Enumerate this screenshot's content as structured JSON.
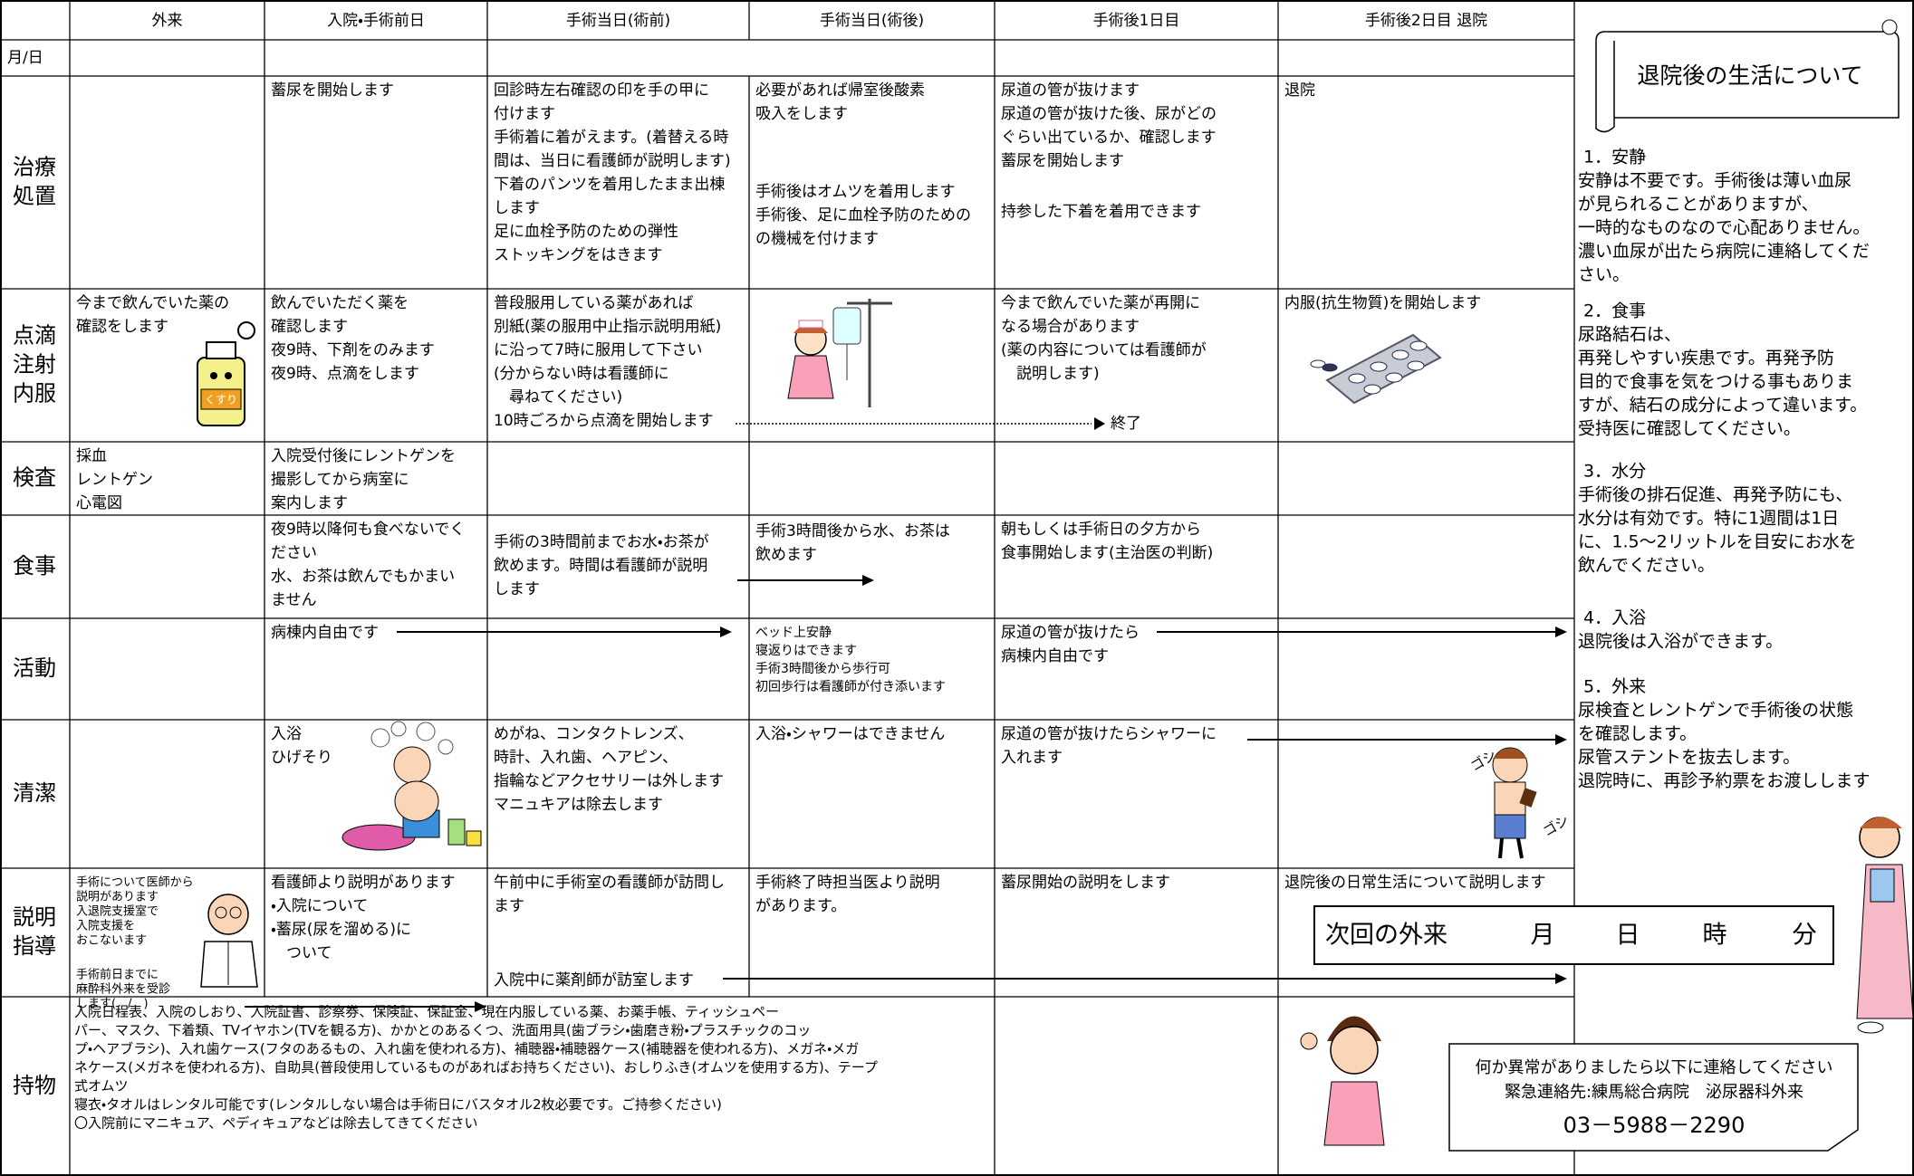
{
  "header": {
    "columns": [
      "外来",
      "入院・手術前日",
      "手術当日(術前)",
      "手術当日(術後)",
      "手術後1日目",
      "手術後2日目 退院"
    ],
    "date_label": "月/日"
  },
  "table": {
    "rows": [
      {
        "label": [
          "治療",
          "処置"
        ],
        "cells": [
          [],
          [
            "蓄尿を開始します"
          ],
          [
            "回診時左右確認の印を手の甲に",
            "付けます",
            "手術着に着がえます。(着替える時",
            "間は、当日に看護師が説明します)",
            "下着のパンツを着用したまま出棟",
            "します",
            "足に血栓予防のための弾性",
            "ストッキングをはきます"
          ],
          [
            "必要があれば帰室後酸素",
            "吸入をします",
            "手術後はオムツを着用します",
            "手術後、足に血栓予防のための",
            "の機械を付けます"
          ],
          [
            "尿道の管が抜けます",
            "尿道の管が抜けた後、尿がどの",
            "ぐらい出ているか、確認します",
            "蓄尿を開始します",
            "持参した下着を着用できます"
          ],
          [
            "退院"
          ]
        ]
      },
      {
        "label": [
          "点滴",
          "注射",
          "内服"
        ],
        "cells": [
          [
            "今まで飲んでいた薬の",
            "確認をします"
          ],
          [
            "飲んでいただく薬を",
            "確認します",
            "夜9時、下剤をのみます",
            "夜9時、点滴をします"
          ],
          [
            "普段服用している薬があれば",
            "別紙(薬の服用中止指示説明用紙)",
            "に沿って7時に服用して下さい",
            "(分からない時は看護師に",
            "　尋ねてください)",
            "10時ごろから点滴を開始します"
          ],
          [],
          [
            "今まで飲んでいた薬が再開に",
            "なる場合があります",
            "(薬の内容については看護師が",
            "　説明します)"
          ],
          [
            "内服(抗生物質)を開始します"
          ]
        ]
      },
      {
        "label": [
          "検査"
        ],
        "cells": [
          [
            "採血",
            "レントゲン",
            "心電図"
          ],
          [
            "入院受付後にレントゲンを",
            "撮影してから病室に",
            "案内します"
          ],
          [],
          [],
          [],
          []
        ]
      },
      {
        "label": [
          "食事"
        ],
        "cells": [
          [],
          [
            "夜9時以降何も食べないでく",
            "ださい",
            "水、お茶は飲んでもかまい",
            "ません"
          ],
          [
            "手術の3時間前までお水・お茶が",
            "飲めます。時間は看護師が説明",
            "します"
          ],
          [
            "手術3時間後から水、お茶は",
            "飲めます"
          ],
          [
            "朝もしくは手術日の夕方から",
            "食事開始します(主治医の判断)"
          ],
          []
        ]
      },
      {
        "label": [
          "活動"
        ],
        "cells": [
          [],
          [
            "病棟内自由です"
          ],
          [],
          [
            "ベッド上安静",
            "寝返りはできます",
            "手術3時間後から歩行可",
            "初回歩行は看護師が付き添います"
          ],
          [
            "尿道の管が抜けたら",
            "病棟内自由です"
          ],
          []
        ]
      },
      {
        "label": [
          "清潔"
        ],
        "cells": [
          [],
          [
            "入浴",
            "ひげそり"
          ],
          [
            "めがね、コンタクトレンズ、",
            "時計、入れ歯、ヘアピン、",
            "指輪などアクセサリーは外します",
            "マニュキアは除去します"
          ],
          [
            "入浴・シャワーはできません"
          ],
          [
            "尿道の管が抜けたらシャワーに",
            "入れます"
          ],
          []
        ]
      },
      {
        "label": [
          "説明",
          "指導"
        ],
        "cells": [
          [
            "手術について医師から",
            "説明があります",
            "入退院支援室で",
            "入院支援を",
            "おこないます",
            "手術前日までに",
            "麻酔科外来を受診",
            "します(　/　)"
          ],
          [
            "看護師より説明があります",
            "・入院について",
            "・蓄尿(尿を溜める)に",
            "　ついて"
          ],
          [
            "午前中に手術室の看護師が訪問し",
            "ます",
            "入院中に薬剤師が訪室します"
          ],
          [
            "手術終了時担当医より説明",
            "があります。"
          ],
          [
            "蓄尿開始の説明をします"
          ],
          [
            "退院後の日常生活について説明します"
          ]
        ]
      }
    ],
    "belongings": {
      "label": "持物",
      "lines": [
        "入院日程表、入院のしおり、入院証書、診察券、保険証、保証金、現在内服している薬、お薬手帳、ティッシュペー",
        "パー、マスク、下着類、TVイヤホン(TVを観る方)、かかとのあるくつ、洗面用具(歯ブラシ・歯磨き粉・プラスチックのコッ",
        "プ・ヘアブラシ)、入れ歯ケース(フタのあるもの、入れ歯を使われる方)、補聴器・補聴器ケース(補聴器を使われる方)、メガネ・メガ",
        "ネケース(メガネを使われる方)、自助具(普段使用しているものがあればお持ちください)、おしりふき(オムツを使用する方)、テープ",
        "式オムツ",
        "寝衣・タオルはレンタル可能です(レンタルしない場合は手術日にバスタオル2枚必要です。ご持参ください)",
        "〇入院前にマニキュア、ペディキュアなどは除去してきてください"
      ]
    },
    "drip_end": "終了"
  },
  "illustrations": {
    "medicine_label": "くすり",
    "scrub_sound": [
      "ゴシ",
      "ゴシ"
    ]
  },
  "side_panel": {
    "title": "退院後の生活について",
    "sections": [
      {
        "heading": "1．安静",
        "lines": [
          "安静は不要です。手術後は薄い血尿",
          "が見られることがありますが、",
          "一時的なものなので心配ありません。",
          "濃い血尿が出たら病院に連絡してくだ",
          "さい。"
        ]
      },
      {
        "heading": "2．食事",
        "lines": [
          "尿路結石は、",
          "再発しやすい疾患です。再発予防",
          "目的で食事を気をつける事もありま",
          "すが、結石の成分によって違います。",
          "受持医に確認してください。"
        ]
      },
      {
        "heading": "3．水分",
        "lines": [
          "手術後の排石促進、再発予防にも、",
          "水分は有効です。特に1週間は1日",
          "に、1.5〜2リットルを目安にお水を",
          "飲んでください。"
        ]
      },
      {
        "heading": "4．入浴",
        "lines": [
          "退院後は入浴ができます。"
        ]
      },
      {
        "heading": "5．外来",
        "lines": [
          "尿検査とレントゲンで手術後の状態",
          "を確認します。",
          "尿管ステントを抜去します。",
          "退院時に、再診予約票をお渡しします"
        ]
      }
    ],
    "next_visit": {
      "label": "次回の外来",
      "units": [
        "月",
        "日",
        "時",
        "分"
      ]
    },
    "contact": [
      "何か異常がありましたら以下に連絡してください",
      "緊急連絡先:練馬総合病院　泌尿器科外来",
      "03－5988－2290"
    ]
  }
}
